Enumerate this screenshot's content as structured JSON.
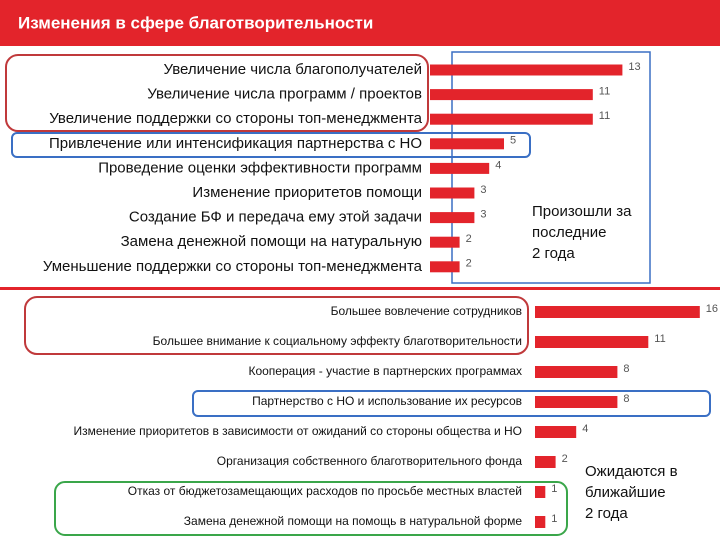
{
  "title": "Изменения в сфере благотворительности",
  "chart_data": [
    {
      "type": "bar",
      "orientation": "horizontal",
      "color": "#e3242b",
      "categories": [
        "Увеличение числа благополучателей",
        "Увеличение числа программ / проектов",
        "Увеличение поддержки со стороны топ-менеджмента",
        "Привлечение или интенсификация партнерства с НО",
        "Проведение оценки эффективности программ",
        "Изменение приоритетов помощи",
        "Создание БФ и передача ему этой задачи",
        "Замена денежной помощи на натуральную",
        "Уменьшение поддержки со стороны топ-менеджмента"
      ],
      "values": [
        13,
        11,
        11,
        5,
        4,
        3,
        3,
        2,
        2
      ],
      "annotation": "Произошли за\nпоследние\n2 года"
    },
    {
      "type": "bar",
      "orientation": "horizontal",
      "color": "#e3242b",
      "categories": [
        "Большее вовлечение сотрудников",
        "Большее внимание к социальному эффекту благотворительности",
        "Кооперация  - участие в партнерских программах",
        "Партнерство с НО и использование их ресурсов",
        "Изменение приоритетов в зависимости от ожиданий со стороны общества и НО",
        "Организация собственного благотворительного фонда",
        "Отказ от бюджетозамещающих расходов по просьбе местных властей",
        "Замена денежной помощи на помощь в натуральной форме"
      ],
      "values": [
        16,
        11,
        8,
        8,
        4,
        2,
        1,
        1
      ],
      "annotation": "Ожидаются в\nближайшие\n2 года"
    }
  ]
}
